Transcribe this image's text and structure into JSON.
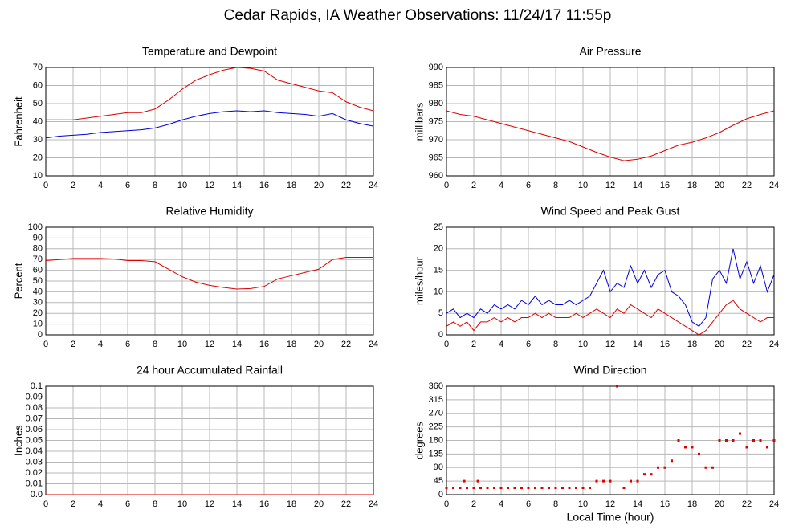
{
  "title": "Cedar Rapids, IA Weather Observations: 11/24/17 11:55p",
  "chart_data": [
    {
      "type": "line",
      "title": "Temperature and Dewpoint",
      "ylabel": "Fahrenheit",
      "x": [
        0,
        1,
        2,
        3,
        4,
        5,
        6,
        7,
        8,
        9,
        10,
        11,
        12,
        13,
        14,
        15,
        16,
        17,
        18,
        19,
        20,
        21,
        22,
        23,
        24
      ],
      "series": [
        {
          "color": "#e00000",
          "values": [
            41,
            41,
            41,
            42,
            43,
            44,
            45,
            45,
            47,
            52,
            58,
            63,
            66,
            68.5,
            70,
            69.5,
            68,
            63,
            61,
            59,
            57,
            56,
            51,
            48,
            46
          ]
        },
        {
          "color": "#0000dd",
          "values": [
            31,
            32,
            32.5,
            33,
            34,
            34.5,
            35,
            35.5,
            36.5,
            38.5,
            41,
            43,
            44.5,
            45.5,
            46,
            45.5,
            46,
            45,
            44.5,
            44,
            43,
            44.5,
            41,
            39,
            37.5
          ]
        }
      ],
      "xlim": [
        0,
        24
      ],
      "xticks": [
        0,
        2,
        4,
        6,
        8,
        10,
        12,
        14,
        16,
        18,
        20,
        22,
        24
      ],
      "ylim": [
        10,
        70
      ],
      "yticks": [
        10,
        20,
        30,
        40,
        50,
        60,
        70
      ],
      "grid": true
    },
    {
      "type": "line",
      "title": "Air Pressure",
      "ylabel": "millibars",
      "x": [
        0,
        1,
        2,
        3,
        4,
        5,
        6,
        7,
        8,
        9,
        10,
        11,
        12,
        13,
        14,
        15,
        16,
        17,
        18,
        19,
        20,
        21,
        22,
        23,
        24
      ],
      "series": [
        {
          "color": "#e00000",
          "values": [
            978,
            977,
            976.5,
            975.5,
            974.5,
            973.5,
            972.5,
            971.5,
            970.5,
            969.5,
            968,
            966.5,
            965.2,
            964.2,
            964.6,
            965.5,
            967,
            968.5,
            969.3,
            970.5,
            972,
            974,
            975.8,
            977,
            978
          ]
        }
      ],
      "xlim": [
        0,
        24
      ],
      "xticks": [
        0,
        2,
        4,
        6,
        8,
        10,
        12,
        14,
        16,
        18,
        20,
        22,
        24
      ],
      "ylim": [
        960,
        990
      ],
      "yticks": [
        960,
        965,
        970,
        975,
        980,
        985,
        990
      ],
      "grid": true
    },
    {
      "type": "line",
      "title": "Relative Humidity",
      "ylabel": "Percent",
      "x": [
        0,
        1,
        2,
        3,
        4,
        5,
        6,
        7,
        8,
        9,
        10,
        11,
        12,
        13,
        14,
        15,
        16,
        17,
        18,
        19,
        20,
        21,
        22,
        23,
        24
      ],
      "series": [
        {
          "color": "#e00000",
          "values": [
            69,
            70,
            71,
            71,
            71,
            70.5,
            69,
            69,
            68,
            61,
            54,
            49,
            46,
            44,
            42.5,
            43,
            45,
            52,
            55,
            58,
            61,
            70,
            72,
            72,
            72
          ]
        }
      ],
      "xlim": [
        0,
        24
      ],
      "xticks": [
        0,
        2,
        4,
        6,
        8,
        10,
        12,
        14,
        16,
        18,
        20,
        22,
        24
      ],
      "ylim": [
        0,
        100
      ],
      "yticks": [
        0,
        10,
        20,
        30,
        40,
        50,
        60,
        70,
        80,
        90,
        100
      ],
      "grid": true
    },
    {
      "type": "line",
      "title": "Wind Speed and Peak Gust",
      "ylabel": "miles/hour",
      "x": [
        0,
        0.5,
        1,
        1.5,
        2,
        2.5,
        3,
        3.5,
        4,
        4.5,
        5,
        5.5,
        6,
        6.5,
        7,
        7.5,
        8,
        8.5,
        9,
        9.5,
        10,
        10.5,
        11,
        11.5,
        12,
        12.5,
        13,
        13.5,
        14,
        14.5,
        15,
        15.5,
        16,
        16.5,
        17,
        17.5,
        18,
        18.5,
        19,
        19.5,
        20,
        20.5,
        21,
        21.5,
        22,
        22.5,
        23,
        23.5,
        24
      ],
      "series": [
        {
          "color": "#0000dd",
          "values": [
            5,
            6,
            4,
            5,
            4,
            6,
            5,
            7,
            6,
            7,
            6,
            8,
            7,
            9,
            7,
            8,
            7,
            7,
            8,
            7,
            8,
            9,
            12,
            15,
            10,
            12,
            11,
            16,
            12,
            15,
            11,
            14,
            15,
            10,
            9,
            7,
            3,
            2,
            4,
            13,
            15,
            12,
            20,
            13,
            17,
            12,
            16,
            10,
            14
          ]
        },
        {
          "color": "#e00000",
          "values": [
            2,
            3,
            2,
            3,
            1,
            3,
            3,
            4,
            3,
            4,
            3,
            4,
            4,
            5,
            4,
            5,
            4,
            4,
            4,
            5,
            4,
            5,
            6,
            5,
            4,
            6,
            5,
            7,
            6,
            5,
            4,
            6,
            5,
            4,
            3,
            2,
            1,
            0,
            1,
            3,
            5,
            7,
            8,
            6,
            5,
            4,
            3,
            4,
            4
          ]
        }
      ],
      "xlim": [
        0,
        24
      ],
      "xticks": [
        0,
        2,
        4,
        6,
        8,
        10,
        12,
        14,
        16,
        18,
        20,
        22,
        24
      ],
      "ylim": [
        0,
        25
      ],
      "yticks": [
        0,
        5,
        10,
        15,
        20,
        25
      ],
      "grid": true
    },
    {
      "type": "line",
      "title": "24 hour Accumulated Rainfall",
      "ylabel": "Inches",
      "x": [
        0,
        24
      ],
      "series": [
        {
          "color": "#e00000",
          "values": [
            0,
            0
          ]
        }
      ],
      "xlim": [
        0,
        24
      ],
      "xticks": [
        0,
        2,
        4,
        6,
        8,
        10,
        12,
        14,
        16,
        18,
        20,
        22,
        24
      ],
      "ylim": [
        0,
        0.1
      ],
      "yticks": [
        {
          "value": 0,
          "label": "0.0"
        },
        0.01,
        0.02,
        0.03,
        0.04,
        0.05,
        0.06,
        0.07,
        0.08,
        0.09,
        0.1
      ],
      "grid": true
    },
    {
      "type": "scatter",
      "title": "Wind Direction",
      "ylabel": "degrees",
      "xlabel": "Local Time (hour)",
      "x": [
        0,
        0.5,
        1,
        1.3,
        1.5,
        2,
        2.3,
        2.5,
        3,
        3.5,
        4,
        4.5,
        5,
        5.5,
        6,
        6.5,
        7,
        7.5,
        8,
        8.5,
        9,
        9.5,
        10,
        10.5,
        11,
        11.5,
        12,
        12.5,
        13,
        13.5,
        14,
        14.5,
        15,
        15.5,
        16,
        16.5,
        17,
        17.5,
        18,
        18.5,
        19,
        19.5,
        20,
        20.5,
        21,
        21.5,
        22,
        22.5,
        23,
        23.5,
        24
      ],
      "series": [
        {
          "color": "#e00000",
          "values": [
            22.5,
            22.5,
            22.5,
            45,
            22.5,
            22.5,
            45,
            22.5,
            22.5,
            22.5,
            22.5,
            22.5,
            22.5,
            22.5,
            22.5,
            22.5,
            22.5,
            22.5,
            22.5,
            22.5,
            22.5,
            22.5,
            22.5,
            22.5,
            45,
            45,
            45,
            360,
            22.5,
            45,
            45,
            67.5,
            67.5,
            90,
            90,
            112.5,
            180,
            157.5,
            157.5,
            135,
            90,
            90,
            180,
            180,
            180,
            202.5,
            157.5,
            180,
            180,
            157.5,
            180
          ]
        }
      ],
      "xlim": [
        0,
        24
      ],
      "xticks": [
        0,
        2,
        4,
        6,
        8,
        10,
        12,
        14,
        16,
        18,
        20,
        22,
        24
      ],
      "ylim": [
        0,
        360
      ],
      "yticks": [
        0,
        45,
        90,
        135,
        180,
        225,
        270,
        315,
        360
      ],
      "grid": true
    }
  ]
}
